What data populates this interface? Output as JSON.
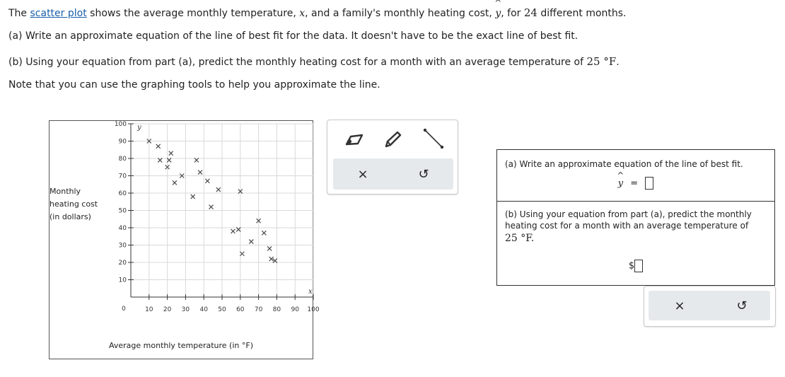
{
  "question": {
    "line1": {
      "pre": "The ",
      "link": "scatter plot",
      "mid1": " shows the average monthly temperature, ",
      "x_var": "x",
      "mid2": ", and a family's monthly heating cost, ",
      "y_var": "y",
      "y_hat": "^",
      "mid3": ", for ",
      "count": "24",
      "post": " different months."
    },
    "part_a": "(a) Write an approximate equation of the line of best fit for the data. It doesn't have to be the exact line of best fit.",
    "part_b": {
      "pre": "(b) Using your equation from part (a), predict the monthly heating cost for a month with an average temperature of ",
      "value": "25 °F",
      "post": "."
    },
    "note": "Note that you can use the graphing tools to help you approximate the line."
  },
  "graph": {
    "y_title_lines": [
      "Monthly",
      "heating cost",
      "(in dollars)"
    ],
    "x_title": "Average monthly temperature (in °F)",
    "y_axis_var": "y",
    "x_axis_var": "x",
    "origin_label": "0"
  },
  "chart_data": {
    "type": "scatter",
    "xlabel": "Average monthly temperature (in °F)",
    "ylabel": "Monthly heating cost (in dollars)",
    "xlim": [
      0,
      100
    ],
    "ylim": [
      0,
      100
    ],
    "x_ticks": [
      10,
      20,
      30,
      40,
      50,
      60,
      70,
      80,
      90,
      100
    ],
    "y_ticks": [
      10,
      20,
      30,
      40,
      50,
      60,
      70,
      80,
      90,
      100
    ],
    "grid": true,
    "points": [
      [
        10,
        90
      ],
      [
        15,
        87
      ],
      [
        16,
        79
      ],
      [
        21,
        79
      ],
      [
        22,
        83
      ],
      [
        20,
        75
      ],
      [
        24,
        66
      ],
      [
        28,
        70
      ],
      [
        34,
        58
      ],
      [
        36,
        79
      ],
      [
        38,
        72
      ],
      [
        42,
        67
      ],
      [
        44,
        52
      ],
      [
        48,
        62
      ],
      [
        56,
        38
      ],
      [
        59,
        39
      ],
      [
        60,
        61
      ],
      [
        66,
        32
      ],
      [
        61,
        25
      ],
      [
        70,
        44
      ],
      [
        73,
        37
      ],
      [
        76,
        28
      ],
      [
        77,
        22
      ],
      [
        79,
        21
      ]
    ]
  },
  "tools": {
    "point_tool": "point-tool-icon",
    "pencil_tool": "pencil-tool-icon",
    "line_tool": "line-tool-icon",
    "clear": "×",
    "undo": "↺"
  },
  "answer": {
    "part_a_prompt": "(a) Write an approximate equation of the line of best fit.",
    "equation_lhs": "y",
    "equation_eq": "=",
    "part_b_prompt_lines": [
      "(b) Using your equation from part (a), predict the monthly",
      "heating cost for a month with an average temperature of"
    ],
    "part_b_value": "25 °F.",
    "currency": "$"
  },
  "bottom_actions": {
    "clear": "×",
    "undo": "↺"
  },
  "colors": {
    "link": "#1a5fa8",
    "grid": "#d9d9d9",
    "marker": "#4a4a4a",
    "toolbar_bg": "#e6e9ec"
  }
}
